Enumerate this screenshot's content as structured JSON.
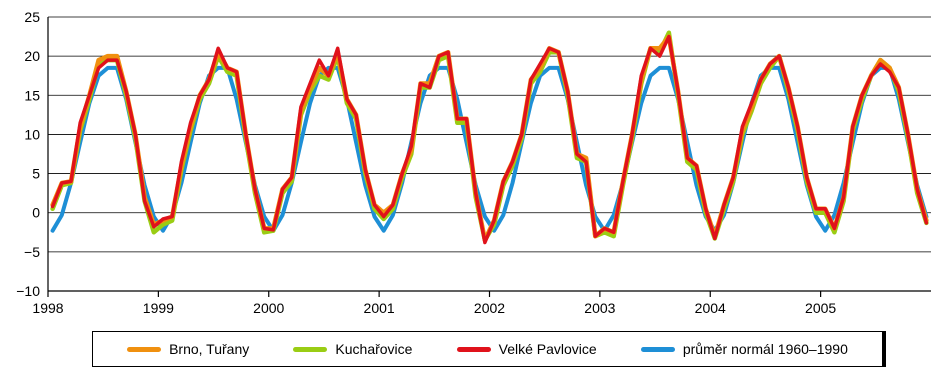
{
  "chart_data": {
    "type": "line",
    "title": "",
    "xlabel": "",
    "ylabel": "",
    "x_ticks": [
      "1998",
      "1999",
      "2000",
      "2001",
      "2002",
      "2003",
      "2004",
      "2005"
    ],
    "y_ticks": [
      -10,
      -5,
      0,
      5,
      10,
      15,
      20,
      25
    ],
    "ylim": [
      -10,
      25
    ],
    "xlim": [
      1998.0,
      2006.0
    ],
    "grid": "horizontal",
    "legend_placement": "bottom",
    "series": [
      {
        "name": "Brno, Tuřany",
        "color": "#f0900f",
        "values": [
          1.0,
          3.8,
          4.0,
          11.0,
          15.0,
          19.5,
          20.0,
          20.0,
          15.5,
          10.0,
          2.0,
          -1.5,
          -1.0,
          -0.5,
          6.0,
          11.0,
          15.0,
          17.0,
          20.5,
          18.5,
          18.0,
          10.0,
          3.0,
          -2.0,
          -2.0,
          3.0,
          4.5,
          13.0,
          16.0,
          18.5,
          17.5,
          20.5,
          14.5,
          12.5,
          5.5,
          1.0,
          0.0,
          1.0,
          5.0,
          8.0,
          16.5,
          16.5,
          20.0,
          20.5,
          12.0,
          12.0,
          2.5,
          -3.5,
          -1.0,
          4.0,
          6.5,
          10.0,
          17.0,
          18.5,
          21.0,
          20.5,
          15.5,
          7.5,
          7.0,
          -3.0,
          -2.0,
          -2.5,
          4.0,
          10.0,
          17.0,
          21.0,
          21.0,
          22.5,
          15.5,
          7.0,
          6.0,
          0.5,
          -3.0,
          1.0,
          4.5,
          10.5,
          13.5,
          17.0,
          19.0,
          20.0,
          16.0,
          11.0,
          4.5,
          0.5,
          0.5,
          -2.0,
          2.0,
          11.0,
          15.0,
          17.5,
          19.5,
          18.5,
          16.0,
          10.0,
          3.0,
          -1.0
        ]
      },
      {
        "name": "Kuchařovice",
        "color": "#9acd14",
        "values": [
          0.5,
          3.5,
          3.8,
          10.5,
          14.5,
          19.0,
          19.5,
          19.5,
          15.0,
          9.5,
          1.5,
          -2.5,
          -1.5,
          -1.0,
          5.5,
          10.5,
          14.5,
          16.5,
          20.0,
          18.0,
          17.5,
          9.5,
          2.5,
          -2.5,
          -2.3,
          2.5,
          4.0,
          12.5,
          15.5,
          17.5,
          17.0,
          20.0,
          14.0,
          12.0,
          5.0,
          0.5,
          -0.8,
          0.5,
          4.5,
          7.5,
          16.0,
          16.0,
          19.5,
          20.0,
          11.5,
          11.5,
          2.0,
          -3.5,
          -1.5,
          3.5,
          6.0,
          9.5,
          16.5,
          18.0,
          20.5,
          20.5,
          15.0,
          7.0,
          6.5,
          -3.0,
          -2.5,
          -3.0,
          3.5,
          9.5,
          16.5,
          21.0,
          20.5,
          23.0,
          15.0,
          6.5,
          5.5,
          0.0,
          -3.3,
          0.5,
          4.0,
          10.0,
          13.0,
          16.5,
          18.5,
          20.0,
          15.5,
          10.5,
          4.0,
          0.0,
          0.0,
          -2.5,
          1.5,
          10.5,
          14.5,
          17.5,
          19.5,
          18.5,
          15.5,
          9.5,
          2.5,
          -1.3
        ]
      },
      {
        "name": "Velké Pavlovice",
        "color": "#e0121b",
        "values": [
          0.8,
          3.8,
          4.0,
          11.5,
          15.0,
          18.5,
          19.5,
          19.5,
          15.5,
          10.0,
          1.5,
          -1.8,
          -0.8,
          -0.5,
          6.5,
          11.5,
          15.0,
          17.0,
          21.0,
          18.5,
          18.0,
          10.0,
          3.0,
          -2.0,
          -2.2,
          3.0,
          4.5,
          13.5,
          16.5,
          19.5,
          17.5,
          21.0,
          14.5,
          12.5,
          5.5,
          1.0,
          -0.5,
          1.0,
          5.0,
          8.5,
          16.5,
          16.0,
          20.0,
          20.5,
          12.0,
          12.0,
          2.5,
          -3.8,
          -1.0,
          4.0,
          6.5,
          10.0,
          17.0,
          19.0,
          21.0,
          20.5,
          15.5,
          7.5,
          6.5,
          -3.0,
          -2.0,
          -2.5,
          4.0,
          10.0,
          17.5,
          21.0,
          20.0,
          22.5,
          15.5,
          7.0,
          6.0,
          0.5,
          -3.3,
          1.0,
          4.5,
          11.0,
          14.0,
          17.0,
          19.0,
          20.0,
          16.0,
          11.0,
          4.5,
          0.5,
          0.5,
          -2.0,
          2.0,
          11.0,
          15.0,
          17.5,
          19.0,
          18.0,
          16.0,
          10.0,
          3.0,
          -1.3
        ]
      },
      {
        "name": "průměr normál 1960–1990",
        "color": "#1e8fd6",
        "values": [
          -2.3,
          -0.3,
          3.8,
          9.0,
          14.0,
          17.5,
          18.5,
          18.5,
          14.5,
          9.0,
          3.5,
          -0.5,
          -2.3,
          -0.3,
          3.8,
          9.0,
          14.0,
          17.5,
          18.5,
          18.5,
          14.5,
          9.0,
          3.5,
          -0.5,
          -2.3,
          -0.3,
          3.8,
          9.0,
          14.0,
          17.5,
          18.5,
          18.5,
          14.5,
          9.0,
          3.5,
          -0.5,
          -2.3,
          -0.3,
          3.8,
          9.0,
          14.0,
          17.5,
          18.5,
          18.5,
          14.5,
          9.0,
          3.5,
          -0.5,
          -2.3,
          -0.3,
          3.8,
          9.0,
          14.0,
          17.5,
          18.5,
          18.5,
          14.5,
          9.0,
          3.5,
          -0.5,
          -2.3,
          -0.3,
          3.8,
          9.0,
          14.0,
          17.5,
          18.5,
          18.5,
          14.5,
          9.0,
          3.5,
          -0.5,
          -2.3,
          -0.3,
          3.8,
          9.0,
          14.0,
          17.5,
          18.5,
          18.5,
          14.5,
          9.0,
          3.5,
          -0.5,
          -2.3,
          -0.3,
          3.8,
          9.0,
          14.0,
          17.5,
          18.5,
          18.5,
          14.5,
          9.0,
          3.5,
          -0.5
        ]
      }
    ]
  }
}
